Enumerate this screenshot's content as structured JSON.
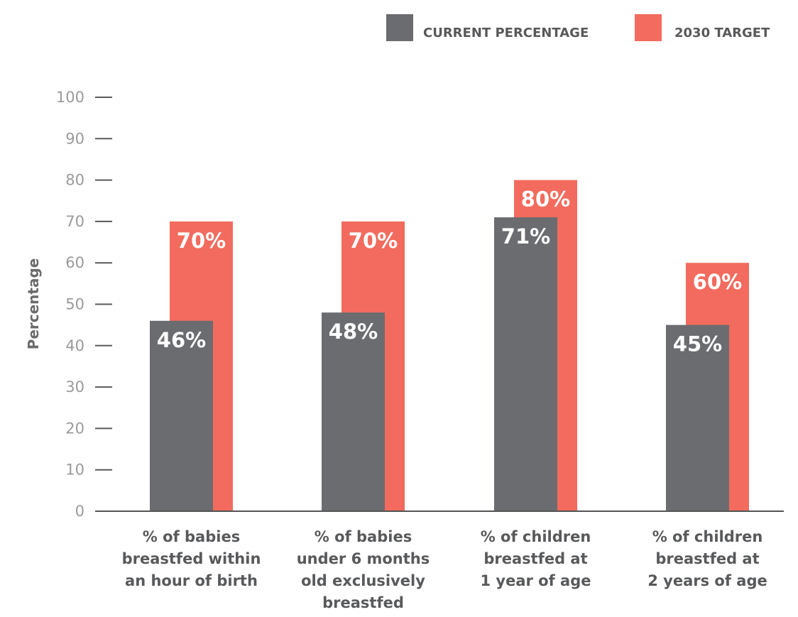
{
  "colors": {
    "current": "#6b6c70",
    "target": "#f26b5e"
  },
  "chart_data": {
    "type": "bar",
    "ylabel": "Percentage",
    "ylim": [
      0,
      100
    ],
    "yticks": [
      "0",
      "10",
      "20",
      "30",
      "40",
      "50",
      "60",
      "70",
      "80",
      "90",
      "100"
    ],
    "legend_position": "top-right",
    "grid": false,
    "categories": [
      [
        "% of babies",
        "breastfed within",
        "an hour of birth"
      ],
      [
        "% of babies",
        "under 6 months",
        "old exclusively",
        "breastfed"
      ],
      [
        "% of children",
        "breastfed at",
        "1 year of age"
      ],
      [
        "% of children",
        "breastfed at",
        "2 years of age"
      ]
    ],
    "series": [
      {
        "name": "CURRENT PERCENTAGE",
        "values": [
          46,
          48,
          71,
          45
        ],
        "labels": [
          "46%",
          "48%",
          "71%",
          "45%"
        ]
      },
      {
        "name": "2030 TARGET",
        "values": [
          70,
          70,
          80,
          60
        ],
        "labels": [
          "70%",
          "70%",
          "80%",
          "60%"
        ]
      }
    ]
  }
}
